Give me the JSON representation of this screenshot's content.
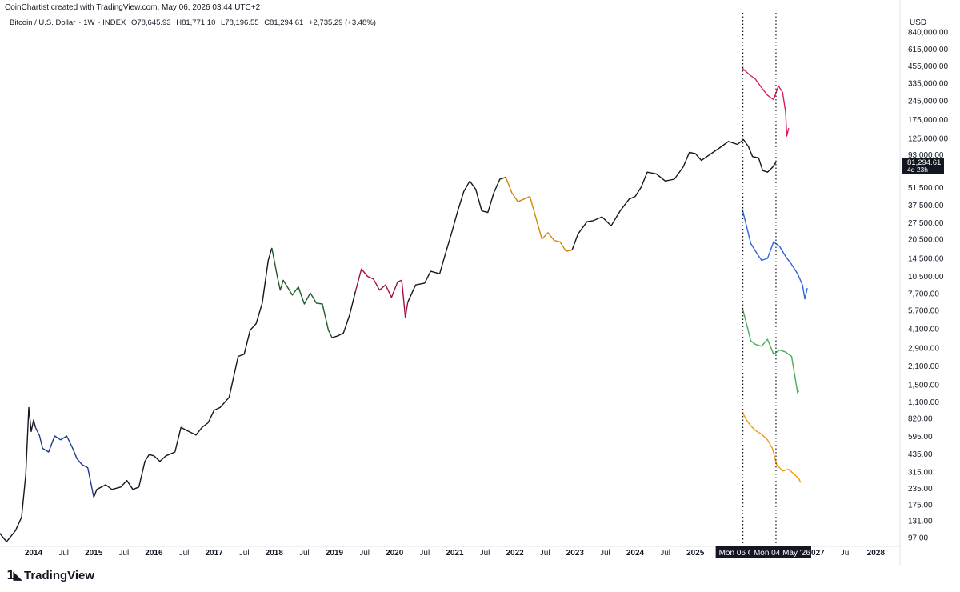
{
  "credit": "CoinChartist created with TradingView.com, May 06, 2026 03:44 UTC+2",
  "symbol": {
    "name": "Bitcoin / U.S. Dollar",
    "interval": "1W",
    "exchange": "INDEX",
    "open": "O78,645.93",
    "high": "H81,771.10",
    "low": "L78,196.55",
    "close": "C81,294.61",
    "change": "+2,735.29 (+3.48%)"
  },
  "currency_label": "USD",
  "last_price": {
    "value": "81,294.61",
    "countdown": "4d 23h"
  },
  "markers": [
    {
      "label": "Mon 06 O"
    },
    {
      "label": "Mon 04 May '26"
    }
  ],
  "brand": "TradingView",
  "colors": {
    "main": "#131722",
    "segment_2014": "#1b3a8c",
    "segment_2018": "#1e5c2a",
    "segment_2019": "#a01040",
    "segment_2021": "#d4860b",
    "overlay_pink": "#e0195f",
    "overlay_blue": "#2f63e0",
    "overlay_green": "#4cab57",
    "overlay_orange": "#f29a12"
  },
  "chart_data": {
    "type": "line",
    "scale": "log",
    "y_unit": "USD",
    "y_ticks": [
      "840,000.00",
      "615,000.00",
      "455,000.00",
      "335,000.00",
      "245,000.00",
      "175,000.00",
      "125,000.00",
      "93,000.00",
      "51,500.00",
      "37,500.00",
      "27,500.00",
      "20,500.00",
      "14,500.00",
      "10,500.00",
      "7,700.00",
      "5,700.00",
      "4,100.00",
      "2,900.00",
      "2,100.00",
      "1,500.00",
      "1,100.00",
      "820.00",
      "595.00",
      "435.00",
      "315.00",
      "235.00",
      "175.00",
      "131.00",
      "97.00"
    ],
    "x_ticks": [
      {
        "label": "2014",
        "date": 2014.0,
        "year": true
      },
      {
        "label": "Jul",
        "date": 2014.5
      },
      {
        "label": "2015",
        "date": 2015.0,
        "year": true
      },
      {
        "label": "Jul",
        "date": 2015.5
      },
      {
        "label": "2016",
        "date": 2016.0,
        "year": true
      },
      {
        "label": "Jul",
        "date": 2016.5
      },
      {
        "label": "2017",
        "date": 2017.0,
        "year": true
      },
      {
        "label": "Jul",
        "date": 2017.5
      },
      {
        "label": "2018",
        "date": 2018.0,
        "year": true
      },
      {
        "label": "Jul",
        "date": 2018.5
      },
      {
        "label": "2019",
        "date": 2019.0,
        "year": true
      },
      {
        "label": "Jul",
        "date": 2019.5
      },
      {
        "label": "2020",
        "date": 2020.0,
        "year": true
      },
      {
        "label": "Jul",
        "date": 2020.5
      },
      {
        "label": "2021",
        "date": 2021.0,
        "year": true
      },
      {
        "label": "Jul",
        "date": 2021.5
      },
      {
        "label": "2022",
        "date": 2022.0,
        "year": true
      },
      {
        "label": "Jul",
        "date": 2022.5
      },
      {
        "label": "2023",
        "date": 2023.0,
        "year": true
      },
      {
        "label": "Jul",
        "date": 2023.5
      },
      {
        "label": "2024",
        "date": 2024.0,
        "year": true
      },
      {
        "label": "Jul",
        "date": 2024.5
      },
      {
        "label": "2025",
        "date": 2025.0,
        "year": true
      },
      {
        "label": "2027",
        "date": 2027.0,
        "year": true
      },
      {
        "label": "Jul",
        "date": 2027.5
      },
      {
        "label": "2028",
        "date": 2028.0,
        "year": true
      }
    ],
    "series": [
      {
        "color_key": "main",
        "points": [
          [
            2013.4,
            110
          ],
          [
            2013.55,
            90
          ],
          [
            2013.7,
            110
          ],
          [
            2013.8,
            140
          ],
          [
            2013.87,
            300
          ],
          [
            2013.92,
            1000
          ],
          [
            2013.96,
            650
          ],
          [
            2014.0,
            800
          ],
          [
            2014.03,
            700
          ]
        ]
      },
      {
        "color_key": "segment_2014",
        "points": [
          [
            2014.03,
            700
          ],
          [
            2014.1,
            600
          ],
          [
            2014.15,
            480
          ],
          [
            2014.25,
            450
          ],
          [
            2014.35,
            600
          ],
          [
            2014.45,
            560
          ],
          [
            2014.55,
            600
          ],
          [
            2014.65,
            480
          ],
          [
            2014.72,
            400
          ],
          [
            2014.8,
            360
          ],
          [
            2014.9,
            340
          ],
          [
            2015.0,
            200
          ]
        ]
      },
      {
        "color_key": "main",
        "points": [
          [
            2015.0,
            200
          ],
          [
            2015.05,
            230
          ],
          [
            2015.2,
            250
          ],
          [
            2015.3,
            230
          ],
          [
            2015.45,
            240
          ],
          [
            2015.55,
            270
          ],
          [
            2015.65,
            230
          ],
          [
            2015.75,
            240
          ],
          [
            2015.85,
            380
          ],
          [
            2015.92,
            430
          ],
          [
            2016.0,
            420
          ],
          [
            2016.1,
            380
          ],
          [
            2016.2,
            420
          ],
          [
            2016.35,
            450
          ],
          [
            2016.45,
            700
          ],
          [
            2016.55,
            660
          ],
          [
            2016.7,
            610
          ],
          [
            2016.8,
            700
          ],
          [
            2016.9,
            760
          ],
          [
            2017.0,
            950
          ],
          [
            2017.1,
            1000
          ],
          [
            2017.25,
            1200
          ],
          [
            2017.4,
            2500
          ],
          [
            2017.5,
            2600
          ],
          [
            2017.6,
            4000
          ],
          [
            2017.7,
            4500
          ],
          [
            2017.8,
            6500
          ],
          [
            2017.9,
            14000
          ],
          [
            2017.96,
            17500
          ]
        ]
      },
      {
        "color_key": "segment_2018",
        "points": [
          [
            2017.96,
            17500
          ],
          [
            2018.05,
            10500
          ],
          [
            2018.1,
            8200
          ],
          [
            2018.15,
            9800
          ],
          [
            2018.3,
            7500
          ],
          [
            2018.4,
            8700
          ],
          [
            2018.5,
            6400
          ],
          [
            2018.6,
            7800
          ],
          [
            2018.7,
            6500
          ],
          [
            2018.8,
            6400
          ],
          [
            2018.9,
            4000
          ],
          [
            2018.96,
            3500
          ]
        ]
      },
      {
        "color_key": "main",
        "points": [
          [
            2018.96,
            3500
          ],
          [
            2019.05,
            3600
          ],
          [
            2019.15,
            3800
          ],
          [
            2019.25,
            5200
          ],
          [
            2019.35,
            8000
          ]
        ]
      },
      {
        "color_key": "segment_2019",
        "points": [
          [
            2019.35,
            8000
          ],
          [
            2019.45,
            12000
          ],
          [
            2019.55,
            10500
          ],
          [
            2019.65,
            10000
          ],
          [
            2019.75,
            8200
          ],
          [
            2019.85,
            9000
          ],
          [
            2019.95,
            7200
          ],
          [
            2020.05,
            9500
          ],
          [
            2020.12,
            9800
          ],
          [
            2020.18,
            5000
          ],
          [
            2020.22,
            6600
          ]
        ]
      },
      {
        "color_key": "main",
        "points": [
          [
            2020.22,
            6600
          ],
          [
            2020.35,
            9000
          ],
          [
            2020.5,
            9300
          ],
          [
            2020.6,
            11500
          ],
          [
            2020.75,
            11000
          ],
          [
            2020.85,
            16000
          ],
          [
            2020.95,
            23000
          ],
          [
            2021.05,
            34000
          ],
          [
            2021.15,
            48000
          ],
          [
            2021.25,
            58000
          ],
          [
            2021.35,
            50000
          ],
          [
            2021.45,
            34000
          ],
          [
            2021.55,
            33000
          ],
          [
            2021.65,
            47000
          ],
          [
            2021.75,
            60000
          ],
          [
            2021.85,
            62000
          ]
        ]
      },
      {
        "color_key": "segment_2021",
        "points": [
          [
            2021.85,
            62000
          ],
          [
            2021.95,
            47000
          ],
          [
            2022.05,
            40000
          ],
          [
            2022.15,
            42000
          ],
          [
            2022.25,
            44000
          ],
          [
            2022.35,
            30000
          ],
          [
            2022.45,
            20500
          ],
          [
            2022.55,
            23000
          ],
          [
            2022.65,
            20000
          ],
          [
            2022.75,
            19500
          ],
          [
            2022.85,
            16500
          ],
          [
            2022.95,
            16800
          ]
        ]
      },
      {
        "color_key": "main",
        "points": [
          [
            2022.95,
            16800
          ],
          [
            2023.05,
            22500
          ],
          [
            2023.2,
            28000
          ],
          [
            2023.3,
            28500
          ],
          [
            2023.45,
            30500
          ],
          [
            2023.6,
            26000
          ],
          [
            2023.75,
            34000
          ],
          [
            2023.9,
            42000
          ],
          [
            2024.0,
            44000
          ],
          [
            2024.1,
            52000
          ],
          [
            2024.2,
            68000
          ],
          [
            2024.35,
            66000
          ],
          [
            2024.5,
            58000
          ],
          [
            2024.65,
            60000
          ],
          [
            2024.8,
            75000
          ],
          [
            2024.9,
            97000
          ],
          [
            2025.0,
            95000
          ],
          [
            2025.1,
            84000
          ],
          [
            2025.25,
            94000
          ],
          [
            2025.4,
            105000
          ],
          [
            2025.55,
            118000
          ],
          [
            2025.7,
            112000
          ],
          [
            2025.8,
            122000
          ],
          [
            2025.88,
            108000
          ],
          [
            2025.95,
            90000
          ],
          [
            2026.05,
            88000
          ],
          [
            2026.12,
            70000
          ],
          [
            2026.2,
            68000
          ],
          [
            2026.28,
            74000
          ],
          [
            2026.34,
            81294
          ]
        ]
      },
      {
        "color_key": "overlay_pink",
        "points": [
          [
            2025.78,
            440000
          ],
          [
            2025.9,
            390000
          ],
          [
            2026.0,
            360000
          ],
          [
            2026.1,
            310000
          ],
          [
            2026.2,
            270000
          ],
          [
            2026.3,
            250000
          ],
          [
            2026.38,
            320000
          ],
          [
            2026.45,
            285000
          ],
          [
            2026.5,
            200000
          ],
          [
            2026.52,
            130000
          ],
          [
            2026.55,
            150000
          ]
        ]
      },
      {
        "color_key": "overlay_blue",
        "points": [
          [
            2025.78,
            35000
          ],
          [
            2025.85,
            26000
          ],
          [
            2025.92,
            19000
          ],
          [
            2026.0,
            16500
          ],
          [
            2026.1,
            14000
          ],
          [
            2026.2,
            14500
          ],
          [
            2026.3,
            19500
          ],
          [
            2026.4,
            18000
          ],
          [
            2026.5,
            15000
          ],
          [
            2026.6,
            13000
          ],
          [
            2026.7,
            11000
          ],
          [
            2026.78,
            9000
          ],
          [
            2026.82,
            7000
          ],
          [
            2026.86,
            8500
          ]
        ]
      },
      {
        "color_key": "overlay_green",
        "points": [
          [
            2025.78,
            6000
          ],
          [
            2025.85,
            4500
          ],
          [
            2025.92,
            3300
          ],
          [
            2026.0,
            3100
          ],
          [
            2026.1,
            3000
          ],
          [
            2026.2,
            3400
          ],
          [
            2026.3,
            2600
          ],
          [
            2026.4,
            2800
          ],
          [
            2026.5,
            2700
          ],
          [
            2026.6,
            2500
          ],
          [
            2026.65,
            1800
          ],
          [
            2026.7,
            1300
          ],
          [
            2026.72,
            1350
          ]
        ]
      },
      {
        "color_key": "overlay_orange",
        "points": [
          [
            2025.78,
            920
          ],
          [
            2025.85,
            800
          ],
          [
            2025.92,
            720
          ],
          [
            2026.0,
            660
          ],
          [
            2026.1,
            620
          ],
          [
            2026.2,
            560
          ],
          [
            2026.28,
            480
          ],
          [
            2026.35,
            360
          ],
          [
            2026.45,
            320
          ],
          [
            2026.55,
            330
          ],
          [
            2026.65,
            300
          ],
          [
            2026.72,
            280
          ],
          [
            2026.75,
            260
          ]
        ]
      }
    ],
    "marker_dates": [
      2025.79,
      2026.34
    ],
    "grid": false,
    "legend": "none"
  }
}
